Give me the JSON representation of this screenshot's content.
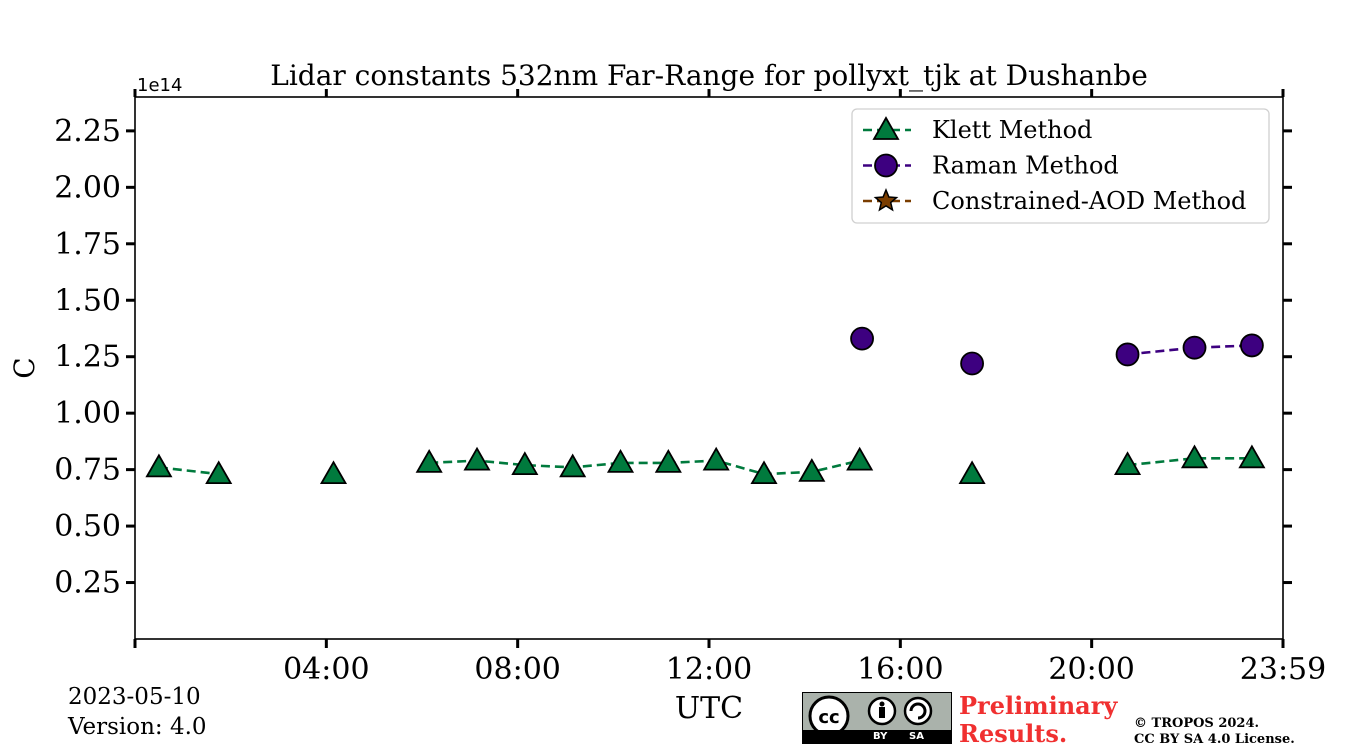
{
  "chart_data": {
    "type": "line",
    "title": "Lidar constants 532nm Far-Range for pollyxt_tjk at Dushanbe",
    "xlabel": "UTC",
    "ylabel": "C",
    "y_multiplier": "1e14",
    "x_unit": "hours",
    "xlim": [
      0,
      24
    ],
    "ylim": [
      0,
      2.4
    ],
    "x_ticks": [
      0,
      4,
      8,
      12,
      16,
      20,
      24
    ],
    "x_tick_labels": [
      "",
      "04:00",
      "08:00",
      "12:00",
      "16:00",
      "20:00",
      "23:59"
    ],
    "y_ticks": [
      0.25,
      0.5,
      0.75,
      1.0,
      1.25,
      1.5,
      1.75,
      2.0,
      2.25
    ],
    "y_tick_labels": [
      "0.25",
      "0.50",
      "0.75",
      "1.00",
      "1.25",
      "1.50",
      "1.75",
      "2.00",
      "2.25"
    ],
    "legend_position": "top-right",
    "series": [
      {
        "name": "Klett Method",
        "color": "#007a3d",
        "marker": "triangle",
        "linestyle": "dashed",
        "segments": [
          [
            [
              0.5,
              0.76
            ],
            [
              1.75,
              0.73
            ]
          ],
          [
            [
              4.15,
              0.73
            ]
          ],
          [
            [
              6.15,
              0.78
            ],
            [
              7.15,
              0.79
            ],
            [
              8.15,
              0.77
            ],
            [
              9.15,
              0.76
            ],
            [
              10.15,
              0.78
            ],
            [
              11.15,
              0.78
            ],
            [
              12.15,
              0.79
            ],
            [
              13.15,
              0.73
            ],
            [
              14.15,
              0.74
            ],
            [
              15.15,
              0.79
            ]
          ],
          [
            [
              17.5,
              0.73
            ]
          ],
          [
            [
              20.75,
              0.77
            ],
            [
              22.15,
              0.8
            ],
            [
              23.35,
              0.8
            ]
          ]
        ]
      },
      {
        "name": "Raman Method",
        "color": "#3d0080",
        "marker": "circle",
        "linestyle": "dashed",
        "segments": [
          [
            [
              15.2,
              1.33
            ]
          ],
          [
            [
              17.5,
              1.22
            ]
          ],
          [
            [
              20.75,
              1.26
            ],
            [
              22.15,
              1.29
            ],
            [
              23.35,
              1.3
            ]
          ]
        ]
      },
      {
        "name": "Constrained-AOD Method",
        "color": "#7a3d00",
        "marker": "star",
        "linestyle": "dashed",
        "segments": []
      }
    ]
  },
  "footer": {
    "date": "2023-05-10",
    "version": "Version: 4.0",
    "preliminary_line1": "Preliminary",
    "preliminary_line2": "Results.",
    "copyright_line1": "© TROPOS 2024.",
    "copyright_line2": "CC BY SA 4.0 License.",
    "badge_by": "BY",
    "badge_sa": "SA"
  }
}
